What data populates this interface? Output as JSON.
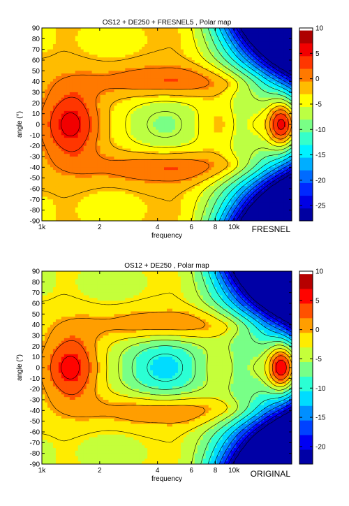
{
  "chart_data": [
    {
      "type": "heatmap",
      "subtype": "filled-contour",
      "title": "OS12 + DE250 + FRESNEL5  ,  Polar map",
      "xlabel": "frequency",
      "ylabel": "angle (°)",
      "x_scale": "log",
      "xlim": [
        1000,
        20000
      ],
      "ylim": [
        -90,
        90
      ],
      "x_ticks": [
        1000,
        2000,
        4000,
        6000,
        8000,
        10000
      ],
      "x_tick_labels": [
        "1k",
        "2",
        "4",
        "6",
        "8",
        "10k"
      ],
      "y_ticks": [
        -90,
        -80,
        -70,
        -60,
        -50,
        -40,
        -30,
        -20,
        -10,
        0,
        10,
        20,
        30,
        40,
        50,
        60,
        70,
        80,
        90
      ],
      "corner_label": "FRESNEL",
      "colorbar": {
        "range": [
          -28,
          10
        ],
        "ticks": [
          10,
          5,
          0,
          -5,
          -10,
          -15,
          -20,
          -25
        ],
        "tick_labels": [
          "10",
          "5",
          "0",
          "-5",
          "-10",
          "-15",
          "-20",
          "-25"
        ]
      },
      "contour_step_db": 2.5,
      "grid": false,
      "features": {
        "hot_spot_1_2k_on_axis_db": 6,
        "side_lobes_pm40_db": 4,
        "mid_dip_4k_on_axis_db": -6,
        "hf_on_axis_peak_db": 9,
        "hf_off_axis_floor_db": -28
      }
    },
    {
      "type": "heatmap",
      "subtype": "filled-contour",
      "title": "OS12 + DE250  ,  Polar map",
      "xlabel": "frequency",
      "ylabel": "angle (°)",
      "x_scale": "log",
      "xlim": [
        1000,
        20000
      ],
      "ylim": [
        -90,
        90
      ],
      "x_ticks": [
        1000,
        2000,
        4000,
        6000,
        8000,
        10000
      ],
      "x_tick_labels": [
        "1k",
        "2",
        "4",
        "6",
        "8",
        "10k"
      ],
      "y_ticks": [
        -90,
        -80,
        -70,
        -60,
        -50,
        -40,
        -30,
        -20,
        -10,
        0,
        10,
        20,
        30,
        40,
        50,
        60,
        70,
        80,
        90
      ],
      "corner_label": "ORIGINAL",
      "colorbar": {
        "range": [
          -23,
          10
        ],
        "ticks": [
          10,
          5,
          0,
          -5,
          -10,
          -15,
          -20
        ],
        "tick_labels": [
          "10",
          "5",
          "0",
          "-5",
          "-10",
          "-15",
          "-20"
        ]
      },
      "contour_step_db": 2.5,
      "grid": false,
      "features": {
        "hot_spot_1_2k_on_axis_db": 6,
        "side_lobes_pm40_db": 4,
        "mid_dip_4k_on_axis_db": -9,
        "hf_on_axis_peak_db": 10,
        "hf_off_axis_floor_db": -23
      }
    }
  ]
}
